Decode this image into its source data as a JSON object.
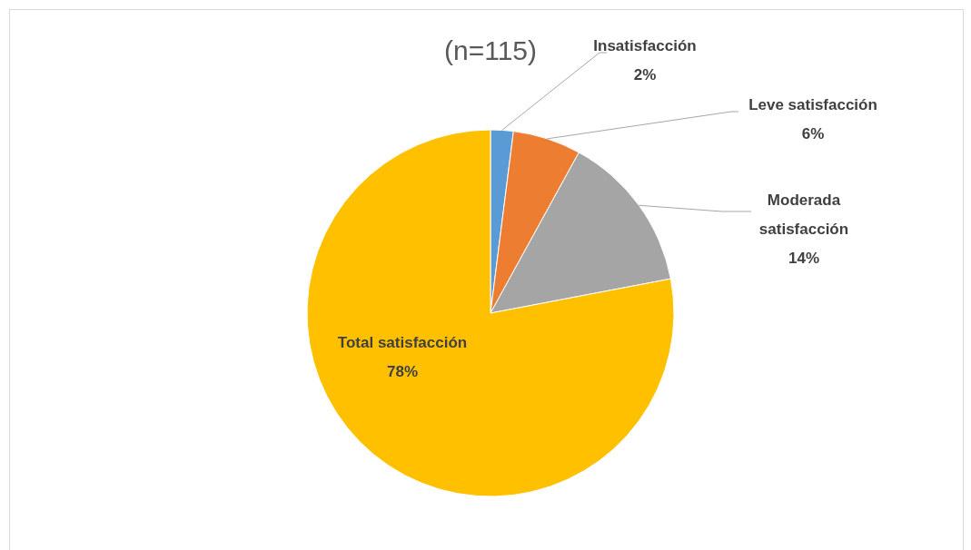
{
  "chart_data": {
    "type": "pie",
    "title": "(n=115)",
    "categories": [
      "Insatisfacción",
      "Leve satisfacción",
      "Moderada satisfacción",
      "Total satisfacción"
    ],
    "values": [
      2,
      6,
      14,
      78
    ],
    "value_labels": [
      "2%",
      "6%",
      "14%",
      "78%"
    ],
    "colors": [
      "#5b9bd5",
      "#ed7d31",
      "#a5a5a5",
      "#ffc000"
    ]
  }
}
